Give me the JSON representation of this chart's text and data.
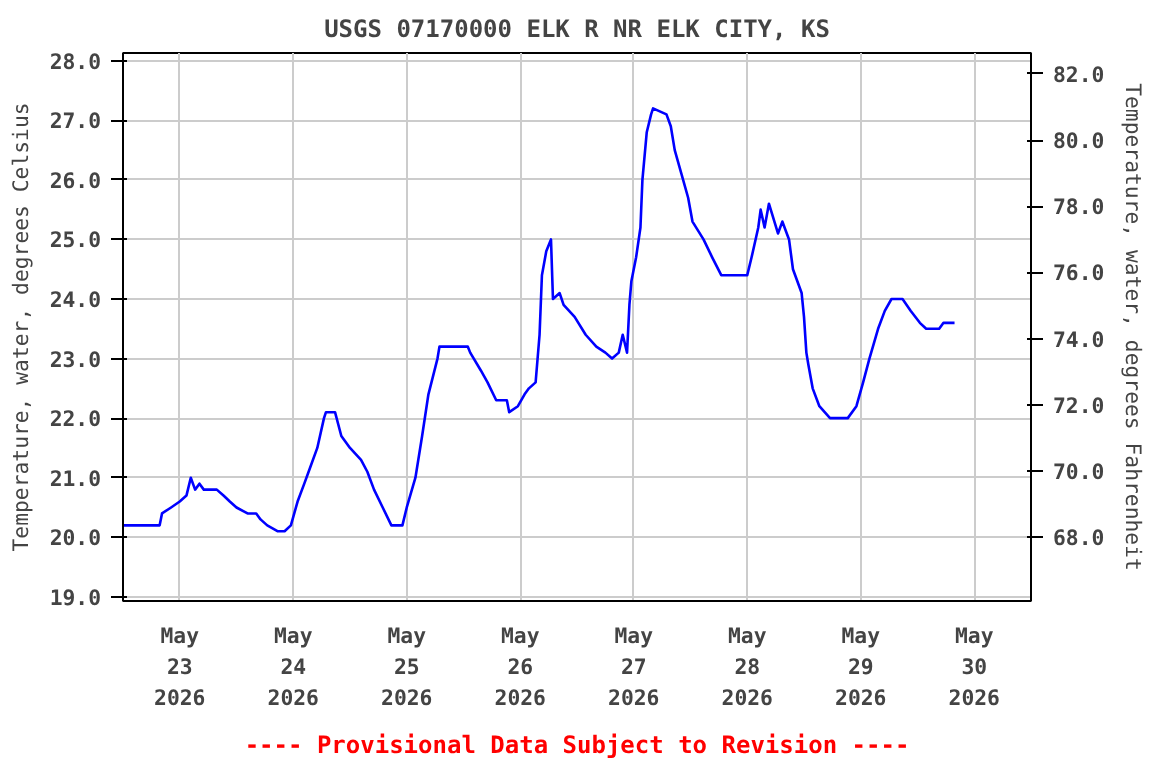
{
  "chart_data": {
    "type": "line",
    "title": "USGS 07170000 ELK R NR ELK CITY, KS",
    "ylabel": "Temperature, water, degrees Celsius",
    "y2label": "Temperature, water, degrees Fahrenheit",
    "annotations": [
      "---- Provisional Data Subject to Revision ----"
    ],
    "x": [
      "2026-05-22T12:00",
      "2026-05-22T19:45",
      "2026-05-22T20:15",
      "2026-05-22T22:10",
      "2026-05-23T00:00",
      "2026-05-23T01:25",
      "2026-05-23T02:20",
      "2026-05-23T03:15",
      "2026-05-23T04:10",
      "2026-05-23T05:05",
      "2026-05-23T07:50",
      "2026-05-23T09:15",
      "2026-05-23T10:35",
      "2026-05-23T12:00",
      "2026-05-23T14:20",
      "2026-05-23T16:10",
      "2026-05-23T17:05",
      "2026-05-23T18:30",
      "2026-05-23T20:45",
      "2026-05-23T22:10",
      "2026-05-23T23:30",
      "2026-05-24T00:55",
      "2026-05-24T02:20",
      "2026-05-24T03:15",
      "2026-05-24T05:05",
      "2026-05-24T06:30",
      "2026-05-24T06:55",
      "2026-05-24T08:50",
      "2026-05-24T10:10",
      "2026-05-24T12:00",
      "2026-05-24T14:20",
      "2026-05-24T15:40",
      "2026-05-24T17:05",
      "2026-05-24T18:55",
      "2026-05-24T20:45",
      "2026-05-24T23:05",
      "2026-05-25T00:00",
      "2026-05-25T01:50",
      "2026-05-25T03:15",
      "2026-05-25T04:35",
      "2026-05-25T06:30",
      "2026-05-25T06:55",
      "2026-05-25T12:55",
      "2026-05-25T13:25",
      "2026-05-25T15:40",
      "2026-05-25T17:05",
      "2026-05-25T18:55",
      "2026-05-25T21:10",
      "2026-05-25T21:40",
      "2026-05-25T23:30",
      "2026-05-26T00:55",
      "2026-05-26T01:50",
      "2026-05-26T03:15",
      "2026-05-26T04:05",
      "2026-05-26T04:35",
      "2026-05-26T05:30",
      "2026-05-26T06:30",
      "2026-05-26T06:55",
      "2026-05-26T08:20",
      "2026-05-26T09:10",
      "2026-05-26T11:30",
      "2026-05-26T13:50",
      "2026-05-26T16:05",
      "2026-05-26T18:00",
      "2026-05-26T19:25",
      "2026-05-26T20:50",
      "2026-05-26T21:40",
      "2026-05-26T22:35",
      "2026-05-26T23:05",
      "2026-05-26T23:30",
      "2026-05-27T00:30",
      "2026-05-27T01:25",
      "2026-05-27T01:50",
      "2026-05-27T02:45",
      "2026-05-27T03:40",
      "2026-05-27T04:05",
      "2026-05-27T06:55",
      "2026-05-27T07:50",
      "2026-05-27T08:40",
      "2026-05-27T10:05",
      "2026-05-27T11:30",
      "2026-05-27T12:25",
      "2026-05-27T14:45",
      "2026-05-27T16:35",
      "2026-05-27T18:30",
      "2026-05-28T00:00",
      "2026-05-28T00:55",
      "2026-05-28T02:20",
      "2026-05-28T02:50",
      "2026-05-28T03:40",
      "2026-05-28T04:35",
      "2026-05-28T06:30",
      "2026-05-28T07:25",
      "2026-05-28T08:50",
      "2026-05-28T09:40",
      "2026-05-28T11:30",
      "2026-05-28T12:00",
      "2026-05-28T12:30",
      "2026-05-28T12:55",
      "2026-05-28T13:50",
      "2026-05-28T15:15",
      "2026-05-28T17:30",
      "2026-05-28T21:15",
      "2026-05-28T23:05",
      "2026-05-29T00:30",
      "2026-05-29T01:50",
      "2026-05-29T03:40",
      "2026-05-29T05:05",
      "2026-05-29T06:30",
      "2026-05-29T08:50",
      "2026-05-29T10:35",
      "2026-05-29T12:30",
      "2026-05-29T13:50",
      "2026-05-29T16:35",
      "2026-05-29T17:30",
      "2026-05-29T19:50"
    ],
    "series": [
      {
        "color": "#0000ff",
        "values": [
          20.2,
          20.2,
          20.4,
          20.5,
          20.6,
          20.7,
          21.0,
          20.8,
          20.9,
          20.8,
          20.8,
          20.7,
          20.6,
          20.5,
          20.4,
          20.4,
          20.3,
          20.2,
          20.1,
          20.1,
          20.2,
          20.6,
          20.9,
          21.1,
          21.5,
          22.0,
          22.1,
          22.1,
          21.7,
          21.5,
          21.3,
          21.1,
          20.8,
          20.5,
          20.2,
          20.2,
          20.5,
          21.0,
          21.7,
          22.4,
          23.0,
          23.2,
          23.2,
          23.1,
          22.8,
          22.6,
          22.3,
          22.3,
          22.1,
          22.2,
          22.4,
          22.5,
          22.6,
          23.4,
          24.4,
          24.8,
          25.0,
          24.0,
          24.1,
          23.9,
          23.7,
          23.4,
          23.2,
          23.1,
          23.0,
          23.1,
          23.4,
          23.1,
          23.9,
          24.3,
          24.7,
          25.2,
          26.0,
          26.8,
          27.1,
          27.2,
          27.1,
          26.9,
          26.5,
          26.1,
          25.7,
          25.3,
          25.0,
          24.7,
          24.4,
          24.4,
          24.7,
          25.2,
          25.5,
          25.2,
          25.6,
          25.1,
          25.3,
          25.0,
          24.5,
          24.1,
          23.7,
          23.1,
          22.9,
          22.5,
          22.2,
          22.0,
          22.0,
          22.2,
          22.6,
          23.0,
          23.5,
          23.8,
          24.0,
          24.0,
          23.8,
          23.6,
          23.5,
          23.5,
          23.6,
          23.6
        ]
      }
    ],
    "xlim": [
      "2026-05-22T12:00",
      "2026-05-30T12:00"
    ],
    "xticks": [
      {
        "value": "2026-05-23",
        "label": "May\n23\n2026"
      },
      {
        "value": "2026-05-24",
        "label": "May\n24\n2026"
      },
      {
        "value": "2026-05-25",
        "label": "May\n25\n2026"
      },
      {
        "value": "2026-05-26",
        "label": "May\n26\n2026"
      },
      {
        "value": "2026-05-27",
        "label": "May\n27\n2026"
      },
      {
        "value": "2026-05-28",
        "label": "May\n28\n2026"
      },
      {
        "value": "2026-05-29",
        "label": "May\n29\n2026"
      },
      {
        "value": "2026-05-30",
        "label": "May\n30\n2026"
      }
    ],
    "ylim": [
      18.93,
      28.13
    ],
    "yticks": [
      {
        "value": 19,
        "label": "19.0"
      },
      {
        "value": 20,
        "label": "20.0"
      },
      {
        "value": 21,
        "label": "21.0"
      },
      {
        "value": 22,
        "label": "22.0"
      },
      {
        "value": 23,
        "label": "23.0"
      },
      {
        "value": 24,
        "label": "24.0"
      },
      {
        "value": 25,
        "label": "25.0"
      },
      {
        "value": 26,
        "label": "26.0"
      },
      {
        "value": 27,
        "label": "27.0"
      },
      {
        "value": 28,
        "label": "28.0"
      }
    ],
    "y2lim": [
      66.07,
      82.63
    ],
    "y2ticks": [
      {
        "value": 68,
        "label": "68.0"
      },
      {
        "value": 70,
        "label": "70.0"
      },
      {
        "value": 72,
        "label": "72.0"
      },
      {
        "value": 74,
        "label": "74.0"
      },
      {
        "value": 76,
        "label": "76.0"
      },
      {
        "value": 78,
        "label": "78.0"
      },
      {
        "value": 80,
        "label": "80.0"
      },
      {
        "value": 82,
        "label": "82.0"
      }
    ],
    "grid": true
  }
}
